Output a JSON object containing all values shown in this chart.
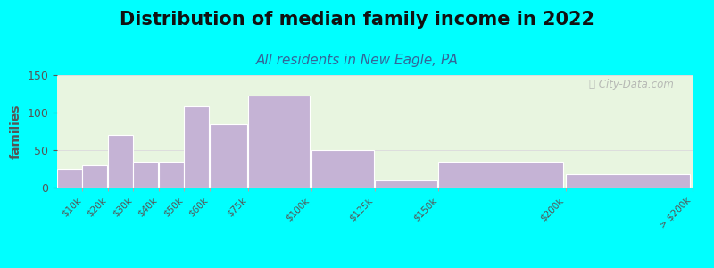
{
  "title": "Distribution of median family income in 2022",
  "subtitle": "All residents in New Eagle, PA",
  "ylabel": "families",
  "bar_color": "#c5b3d5",
  "bar_edge_color": "#ffffff",
  "ylim": [
    0,
    150
  ],
  "yticks": [
    0,
    50,
    100,
    150
  ],
  "background_color": "#00ffff",
  "plot_bg_color": "#e8f5e0",
  "title_fontsize": 15,
  "subtitle_fontsize": 11,
  "ylabel_fontsize": 10,
  "watermark_text": "ⓘ City-Data.com",
  "grid_color": "#dddddd",
  "bin_edges": [
    0,
    10,
    20,
    30,
    40,
    50,
    60,
    75,
    100,
    125,
    150,
    200,
    250
  ],
  "values": [
    25,
    30,
    70,
    35,
    35,
    108,
    85,
    123,
    50,
    10,
    35,
    18
  ],
  "tick_labels": [
    "$10k",
    "$20k",
    "$30k",
    "$40k",
    "$50k",
    "$60k",
    "$75k",
    "$100k",
    "$125k",
    "$150k",
    "$200k",
    "> $200k"
  ]
}
